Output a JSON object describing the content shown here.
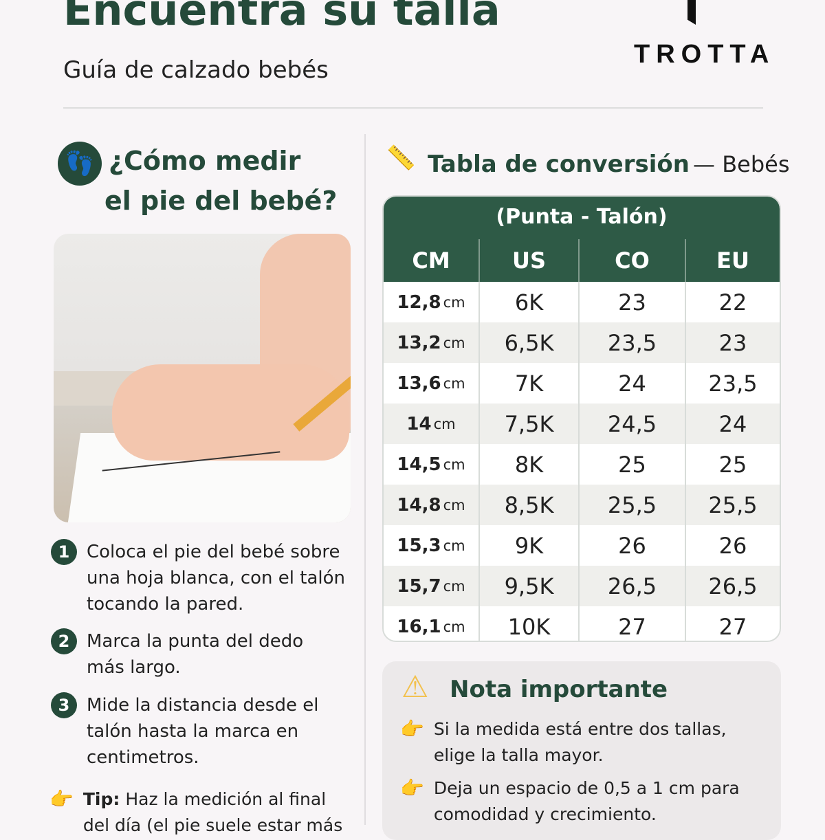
{
  "header": {
    "title": "Encuentra su talla",
    "subtitle": "Guía de calzado bebés",
    "brand": "TROTTA"
  },
  "measure": {
    "title_line1": "¿Cómo medir",
    "title_line2": "el pie del bebé?",
    "steps": [
      {
        "n": "1",
        "text": "Coloca el pie del bebé sobre una hoja blanca, con el talón tocando la pared."
      },
      {
        "n": "2",
        "text": "Marca la punta del dedo más largo."
      },
      {
        "n": "3",
        "text": "Mide la distancia desde el talón hasta la marca en centimetros."
      }
    ],
    "tip_label": "Tip:",
    "tip_text": "Haz la medición al final del día (el pie suele estar más"
  },
  "table": {
    "title": "Tabla de conversión",
    "title_suffix": "— Bebés",
    "caption": "(Punta - Talón)",
    "headers": [
      "CM",
      "US",
      "CO",
      "EU"
    ],
    "unit": "cm",
    "rows": [
      [
        "12,8",
        "6K",
        "23",
        "22"
      ],
      [
        "13,2",
        "6,5K",
        "23,5",
        "23"
      ],
      [
        "13,6",
        "7K",
        "24",
        "23,5"
      ],
      [
        "14",
        "7,5K",
        "24,5",
        "24"
      ],
      [
        "14,5",
        "8K",
        "25",
        "25"
      ],
      [
        "14,8",
        "8,5K",
        "25,5",
        "25,5"
      ],
      [
        "15,3",
        "9K",
        "26",
        "26"
      ],
      [
        "15,7",
        "9,5K",
        "26,5",
        "26,5"
      ],
      [
        "16,1",
        "10K",
        "27",
        "27"
      ]
    ]
  },
  "note": {
    "title": "Nota importante",
    "items": [
      "Si la medida está entre dos tallas, elige la talla mayor.",
      "Deja un espacio de 0,5 a 1 cm para comodidad y crecimiento."
    ]
  },
  "colors": {
    "accent": "#254a3a",
    "header_bg": "#2e5a46",
    "warning": "#f2c14e"
  }
}
